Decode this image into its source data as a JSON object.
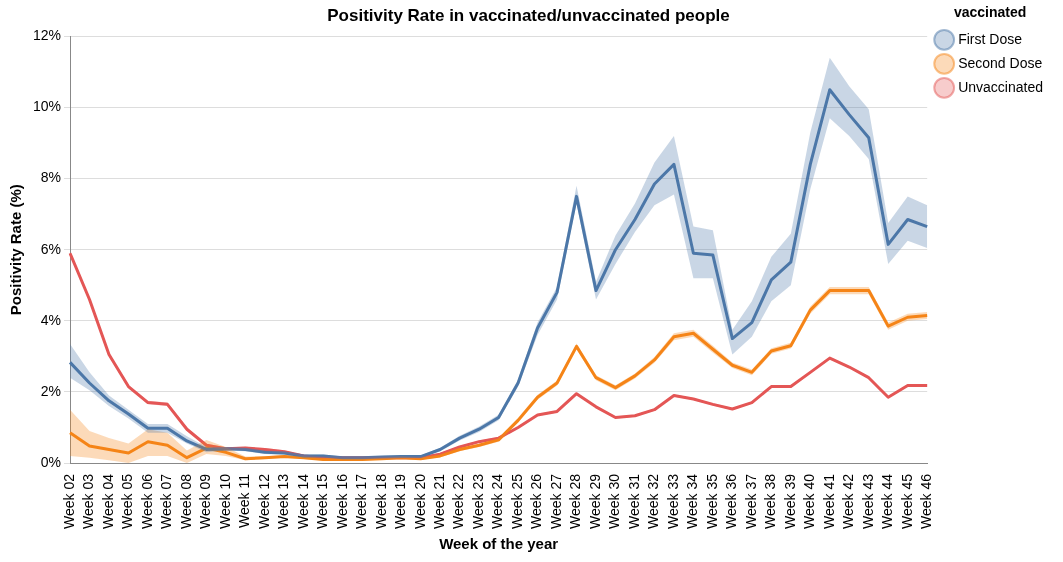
{
  "chart_data": {
    "type": "line",
    "title": "Positivity Rate in vaccinated/unvaccinated people",
    "xlabel": "Week of the year",
    "ylabel": "Positivity Rate (%)",
    "legend_title": "vaccinated",
    "legend": "top right",
    "grid": "y",
    "marker": "none",
    "line_style": "solid",
    "categories": [
      "Week 02",
      "Week 03",
      "Week 04",
      "Week 05",
      "Week 06",
      "Week 07",
      "Week 08",
      "Week 09",
      "Week 10",
      "Week 11",
      "Week 12",
      "Week 13",
      "Week 14",
      "Week 15",
      "Week 16",
      "Week 17",
      "Week 18",
      "Week 19",
      "Week 20",
      "Week 21",
      "Week 22",
      "Week 23",
      "Week 24",
      "Week 25",
      "Week 26",
      "Week 27",
      "Week 28",
      "Week 29",
      "Week 30",
      "Week 31",
      "Week 32",
      "Week 33",
      "Week 34",
      "Week 35",
      "Week 36",
      "Week 37",
      "Week 38",
      "Week 39",
      "Week 40",
      "Week 41",
      "Week 42",
      "Week 43",
      "Week 44",
      "Week 45",
      "Week 46"
    ],
    "ylim": [
      0,
      12
    ],
    "yticks": [
      {
        "value": 0,
        "label": "0%"
      },
      {
        "value": 2,
        "label": "2%"
      },
      {
        "value": 4,
        "label": "4%"
      },
      {
        "value": 6,
        "label": "6%"
      },
      {
        "value": 8,
        "label": "8%"
      },
      {
        "value": 10,
        "label": "10%"
      },
      {
        "value": 12,
        "label": "12%"
      }
    ],
    "series": [
      {
        "name": "First Dose",
        "color": "#4c78a8",
        "values": [
          2.83,
          2.25,
          1.75,
          1.38,
          0.98,
          0.98,
          0.62,
          0.38,
          0.4,
          0.38,
          0.3,
          0.28,
          0.2,
          0.2,
          0.15,
          0.15,
          0.17,
          0.18,
          0.18,
          0.38,
          0.7,
          0.95,
          1.28,
          2.25,
          3.8,
          4.8,
          7.5,
          4.85,
          6.0,
          6.85,
          7.85,
          8.4,
          5.9,
          5.85,
          3.5,
          3.95,
          5.15,
          5.65,
          8.4,
          10.5,
          9.8,
          9.15,
          6.15,
          6.85,
          6.65
        ],
        "lower": [
          2.4,
          2.05,
          1.6,
          1.25,
          0.85,
          0.85,
          0.55,
          0.3,
          0.35,
          0.33,
          0.25,
          0.23,
          0.16,
          0.16,
          0.12,
          0.12,
          0.14,
          0.15,
          0.15,
          0.33,
          0.63,
          0.87,
          1.2,
          2.15,
          3.6,
          4.6,
          7.3,
          4.6,
          5.6,
          6.5,
          7.25,
          7.55,
          5.2,
          5.2,
          3.05,
          3.55,
          4.55,
          5.0,
          7.7,
          9.7,
          9.2,
          8.55,
          5.6,
          6.25,
          6.05
        ],
        "upper": [
          3.35,
          2.55,
          1.9,
          1.5,
          1.1,
          1.1,
          0.75,
          0.45,
          0.45,
          0.43,
          0.35,
          0.33,
          0.24,
          0.24,
          0.18,
          0.18,
          0.2,
          0.21,
          0.21,
          0.43,
          0.77,
          1.03,
          1.36,
          2.35,
          3.95,
          4.95,
          7.8,
          5.1,
          6.4,
          7.3,
          8.45,
          9.2,
          6.65,
          6.55,
          3.75,
          4.55,
          5.8,
          6.45,
          9.3,
          11.4,
          10.6,
          9.95,
          6.75,
          7.5,
          7.25
        ]
      },
      {
        "name": "Second Dose",
        "color": "#f58518",
        "values": [
          0.85,
          0.48,
          0.38,
          0.28,
          0.6,
          0.5,
          0.15,
          0.42,
          0.3,
          0.12,
          0.15,
          0.18,
          0.15,
          0.1,
          0.1,
          0.1,
          0.12,
          0.15,
          0.12,
          0.2,
          0.38,
          0.5,
          0.65,
          1.2,
          1.85,
          2.25,
          3.28,
          2.4,
          2.12,
          2.45,
          2.9,
          3.55,
          3.65,
          3.2,
          2.75,
          2.55,
          3.15,
          3.3,
          4.3,
          4.85,
          4.85,
          4.85,
          3.85,
          4.1,
          4.15
        ],
        "lower": [
          0.2,
          0.15,
          0.08,
          0.0,
          0.2,
          0.2,
          0.0,
          0.25,
          0.2,
          0.08,
          0.11,
          0.14,
          0.11,
          0.07,
          0.07,
          0.07,
          0.09,
          0.12,
          0.09,
          0.16,
          0.33,
          0.45,
          0.6,
          1.13,
          1.78,
          2.18,
          3.2,
          2.33,
          2.05,
          2.38,
          2.82,
          3.45,
          3.55,
          3.1,
          2.67,
          2.47,
          3.07,
          3.22,
          4.2,
          4.75,
          4.75,
          4.75,
          3.75,
          4.0,
          4.05
        ],
        "upper": [
          1.5,
          0.9,
          0.7,
          0.55,
          0.95,
          0.85,
          0.35,
          0.65,
          0.45,
          0.18,
          0.19,
          0.22,
          0.19,
          0.13,
          0.13,
          0.13,
          0.15,
          0.18,
          0.15,
          0.24,
          0.43,
          0.55,
          0.7,
          1.27,
          1.92,
          2.32,
          3.36,
          2.47,
          2.19,
          2.52,
          2.98,
          3.65,
          3.75,
          3.3,
          2.83,
          2.63,
          3.23,
          3.38,
          4.4,
          4.95,
          4.95,
          4.95,
          3.95,
          4.2,
          4.25
        ]
      },
      {
        "name": "Unvaccinated",
        "color": "#e45756",
        "values": [
          5.9,
          4.6,
          3.05,
          2.15,
          1.7,
          1.65,
          0.95,
          0.5,
          0.4,
          0.42,
          0.38,
          0.32,
          0.2,
          0.15,
          0.15,
          0.15,
          0.15,
          0.15,
          0.15,
          0.25,
          0.45,
          0.6,
          0.7,
          1.0,
          1.35,
          1.45,
          1.95,
          1.58,
          1.28,
          1.33,
          1.5,
          1.9,
          1.8,
          1.65,
          1.52,
          1.7,
          2.15,
          2.15,
          2.55,
          2.95,
          2.7,
          2.4,
          1.85,
          2.18,
          2.18
        ],
        "lower": [
          5.85,
          4.55,
          3.0,
          2.1,
          1.65,
          1.6,
          0.9,
          0.46,
          0.36,
          0.38,
          0.34,
          0.28,
          0.17,
          0.12,
          0.12,
          0.12,
          0.12,
          0.12,
          0.12,
          0.22,
          0.42,
          0.57,
          0.67,
          0.97,
          1.32,
          1.42,
          1.92,
          1.55,
          1.25,
          1.3,
          1.47,
          1.87,
          1.77,
          1.62,
          1.49,
          1.67,
          2.12,
          2.12,
          2.52,
          2.92,
          2.67,
          2.37,
          1.82,
          2.15,
          2.15
        ],
        "upper": [
          5.95,
          4.65,
          3.1,
          2.2,
          1.75,
          1.7,
          1.0,
          0.54,
          0.44,
          0.46,
          0.42,
          0.36,
          0.23,
          0.18,
          0.18,
          0.18,
          0.18,
          0.18,
          0.18,
          0.28,
          0.48,
          0.63,
          0.73,
          1.03,
          1.38,
          1.48,
          1.98,
          1.61,
          1.31,
          1.36,
          1.53,
          1.93,
          1.83,
          1.68,
          1.55,
          1.73,
          2.18,
          2.18,
          2.58,
          2.98,
          2.73,
          2.43,
          1.88,
          2.21,
          2.21
        ]
      }
    ]
  }
}
